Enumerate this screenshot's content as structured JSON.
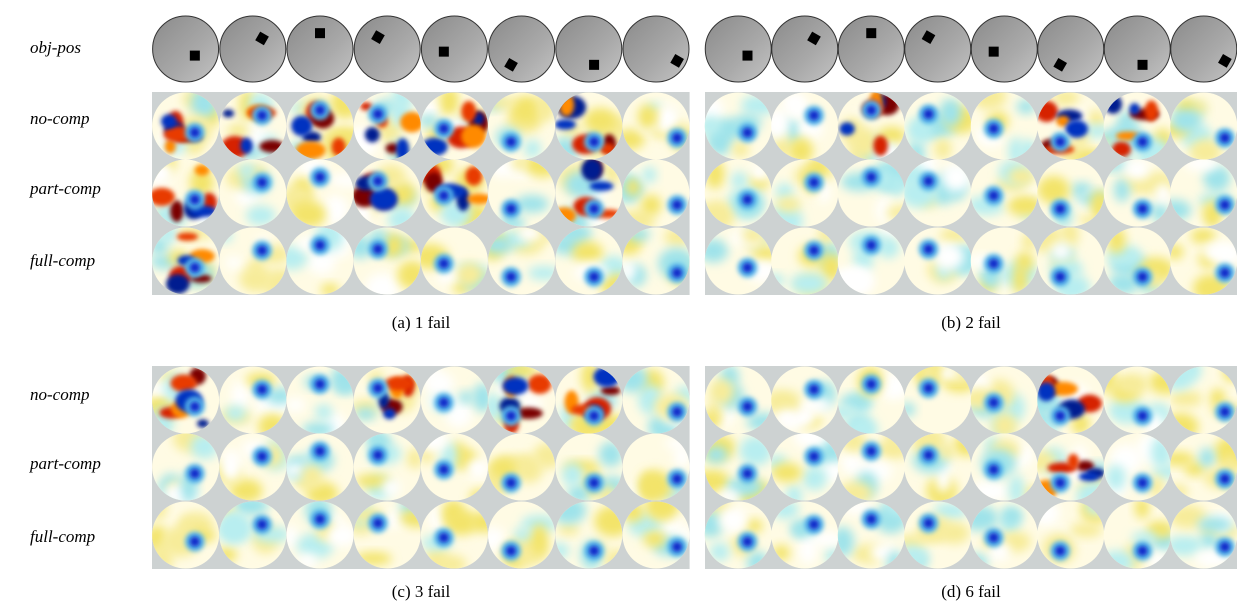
{
  "row_labels_top": [
    "obj-pos",
    "no-comp",
    "part-comp",
    "full-comp"
  ],
  "row_labels_bottom": [
    "no-comp",
    "part-comp",
    "full-comp"
  ],
  "captions": [
    "(a)  1 fail",
    "(b)  2 fail",
    "(c)  3 fail",
    "(d)  6 fail"
  ]
}
